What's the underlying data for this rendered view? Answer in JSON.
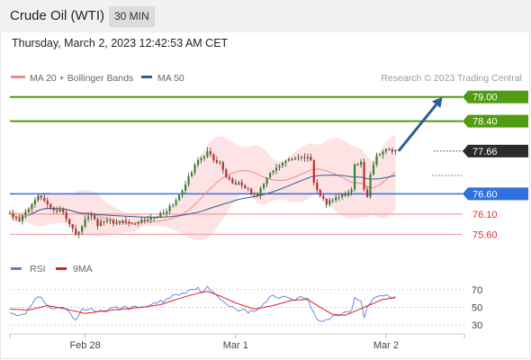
{
  "header": {
    "title": "Crude Oil (WTI)",
    "timeframe": "30 MIN",
    "datetime": "Thursday, March 2, 2023 12:42:53 AM CET"
  },
  "chart_data": [
    {
      "type": "line",
      "name": "price-panel",
      "legend": [
        {
          "name": "MA 20 + Bollinger Bands",
          "color": "#f08a8a"
        },
        {
          "name": "MA 50",
          "color": "#2e5d9a"
        }
      ],
      "legend_placement": "top-left",
      "credit": "Research © 2023 Trading Central",
      "ylim": [
        75.25,
        79.35
      ],
      "x_ticks": [
        {
          "label": "Feb 28",
          "at": 24
        },
        {
          "label": "Mar 1",
          "at": 72
        },
        {
          "label": "Mar 2",
          "at": 120
        }
      ],
      "x_range": [
        0,
        145
      ],
      "levels": [
        {
          "value": 79.0,
          "label": "79.00",
          "kind": "resistance",
          "color": "#4f9c10",
          "text_color": "#ffffff"
        },
        {
          "value": 78.4,
          "label": "78.40",
          "kind": "resistance",
          "color": "#4f9c10",
          "text_color": "#ffffff"
        },
        {
          "value": 77.66,
          "label": "77.66",
          "kind": "last",
          "color": "#2b2b2b",
          "text_color": "#ffffff"
        },
        {
          "value": 76.6,
          "label": "76.60",
          "kind": "pivot",
          "color": "#2f6fe0",
          "text_color": "#ffffff"
        },
        {
          "value": 76.1,
          "label": "76.10",
          "kind": "support",
          "color": "#f0a0a0",
          "text_color": "#e03030"
        },
        {
          "value": 75.6,
          "label": "75.60",
          "kind": "support",
          "color": "#f0a0a0",
          "text_color": "#e03030"
        }
      ],
      "arrow": {
        "from": [
          124,
          77.66
        ],
        "to": [
          138,
          79.0
        ],
        "color": "#2e5d9a"
      },
      "candles_anchor": [
        [
          0,
          76.1
        ],
        [
          3,
          75.95
        ],
        [
          6,
          76.2
        ],
        [
          8,
          76.4
        ],
        [
          9,
          76.6
        ],
        [
          10,
          76.55
        ],
        [
          12,
          76.35
        ],
        [
          14,
          76.15
        ],
        [
          16,
          76.2
        ],
        [
          18,
          76.0
        ],
        [
          20,
          75.75
        ],
        [
          21,
          75.55
        ],
        [
          22,
          75.7
        ],
        [
          24,
          75.95
        ],
        [
          26,
          76.05
        ],
        [
          28,
          75.85
        ],
        [
          30,
          75.95
        ],
        [
          33,
          75.9
        ],
        [
          36,
          75.92
        ],
        [
          40,
          75.9
        ],
        [
          44,
          75.98
        ],
        [
          47,
          76.05
        ],
        [
          50,
          76.2
        ],
        [
          53,
          76.4
        ],
        [
          55,
          76.7
        ],
        [
          57,
          77.0
        ],
        [
          59,
          77.3
        ],
        [
          61,
          77.5
        ],
        [
          63,
          77.65
        ],
        [
          65,
          77.45
        ],
        [
          67,
          77.35
        ],
        [
          69,
          77.05
        ],
        [
          71,
          76.9
        ],
        [
          73,
          76.85
        ],
        [
          75,
          76.75
        ],
        [
          77,
          76.65
        ],
        [
          79,
          76.6
        ],
        [
          81,
          76.8
        ],
        [
          83,
          77.15
        ],
        [
          85,
          77.25
        ],
        [
          88,
          77.4
        ],
        [
          91,
          77.45
        ],
        [
          94,
          77.5
        ],
        [
          96,
          77.45
        ],
        [
          97,
          76.9
        ],
        [
          99,
          76.55
        ],
        [
          101,
          76.35
        ],
        [
          103,
          76.45
        ],
        [
          105,
          76.55
        ],
        [
          107,
          76.6
        ],
        [
          109,
          76.75
        ],
        [
          110,
          77.3
        ],
        [
          112,
          77.35
        ],
        [
          113,
          76.75
        ],
        [
          114,
          76.55
        ],
        [
          115,
          77.1
        ],
        [
          117,
          77.5
        ],
        [
          119,
          77.68
        ],
        [
          121,
          77.7
        ],
        [
          123,
          77.66
        ]
      ]
    },
    {
      "type": "line",
      "name": "rsi-panel",
      "legend": [
        {
          "name": "RSI",
          "color": "#5b7fd6"
        },
        {
          "name": "9MA",
          "color": "#e02020"
        }
      ],
      "legend_placement": "top-left",
      "ylim": [
        25,
        78
      ],
      "y_ticks": [
        70,
        50,
        30
      ],
      "rsi_anchor": [
        [
          0,
          46
        ],
        [
          4,
          40
        ],
        [
          7,
          53
        ],
        [
          9,
          63
        ],
        [
          11,
          55
        ],
        [
          13,
          47
        ],
        [
          16,
          50
        ],
        [
          19,
          43
        ],
        [
          21,
          35
        ],
        [
          23,
          46
        ],
        [
          26,
          49
        ],
        [
          29,
          45
        ],
        [
          32,
          47
        ],
        [
          36,
          50
        ],
        [
          40,
          49
        ],
        [
          44,
          52
        ],
        [
          48,
          56
        ],
        [
          52,
          63
        ],
        [
          56,
          68
        ],
        [
          59,
          72
        ],
        [
          61,
          69
        ],
        [
          63,
          72
        ],
        [
          66,
          62
        ],
        [
          69,
          55
        ],
        [
          72,
          49
        ],
        [
          75,
          46
        ],
        [
          78,
          44
        ],
        [
          81,
          55
        ],
        [
          84,
          63
        ],
        [
          87,
          62
        ],
        [
          91,
          60
        ],
        [
          95,
          61
        ],
        [
          97,
          42
        ],
        [
          99,
          33
        ],
        [
          101,
          36
        ],
        [
          103,
          40
        ],
        [
          106,
          43
        ],
        [
          109,
          47
        ],
        [
          110,
          62
        ],
        [
          112,
          55
        ],
        [
          113,
          40
        ],
        [
          114,
          50
        ],
        [
          116,
          62
        ],
        [
          118,
          64
        ],
        [
          121,
          63
        ],
        [
          123,
          60
        ]
      ],
      "ma_anchor": [
        [
          0,
          48
        ],
        [
          6,
          47
        ],
        [
          12,
          52
        ],
        [
          18,
          48
        ],
        [
          24,
          43
        ],
        [
          30,
          46
        ],
        [
          36,
          48
        ],
        [
          42,
          50
        ],
        [
          48,
          53
        ],
        [
          54,
          60
        ],
        [
          60,
          66
        ],
        [
          63,
          68
        ],
        [
          67,
          63
        ],
        [
          72,
          55
        ],
        [
          78,
          48
        ],
        [
          84,
          52
        ],
        [
          90,
          58
        ],
        [
          95,
          59
        ],
        [
          99,
          50
        ],
        [
          103,
          42
        ],
        [
          107,
          41
        ],
        [
          111,
          47
        ],
        [
          115,
          53
        ],
        [
          119,
          59
        ],
        [
          123,
          61
        ]
      ]
    }
  ]
}
